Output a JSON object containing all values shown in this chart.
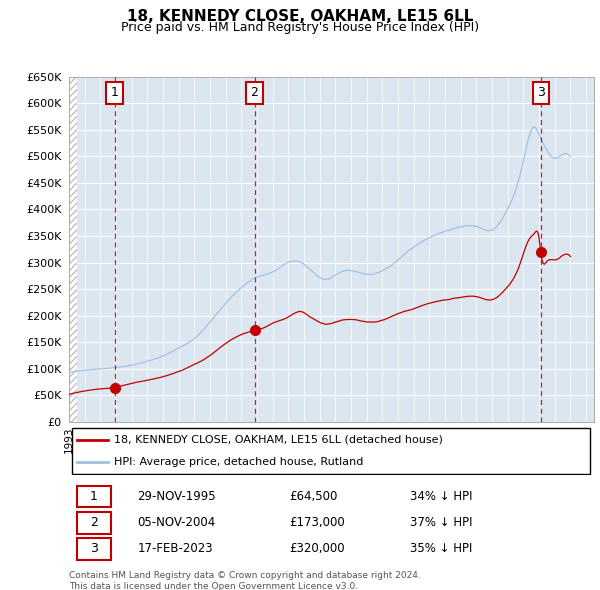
{
  "title": "18, KENNEDY CLOSE, OAKHAM, LE15 6LL",
  "subtitle": "Price paid vs. HM Land Registry's House Price Index (HPI)",
  "hpi_color": "#9dc3e6",
  "sale_color": "#c00000",
  "dashed_line_color": "#c00000",
  "background_color": "#dce6f1",
  "ylim": [
    0,
    650000
  ],
  "xmin": 1993.0,
  "xmax": 2026.5,
  "sales": [
    {
      "num": 1,
      "year": 1995.91,
      "price": 64500
    },
    {
      "num": 2,
      "year": 2004.84,
      "price": 173000
    },
    {
      "num": 3,
      "year": 2023.12,
      "price": 320000
    }
  ],
  "legend_label_sale": "18, KENNEDY CLOSE, OAKHAM, LE15 6LL (detached house)",
  "legend_label_hpi": "HPI: Average price, detached house, Rutland",
  "footnote": "Contains HM Land Registry data © Crown copyright and database right 2024.\nThis data is licensed under the Open Government Licence v3.0.",
  "table_rows": [
    {
      "num": "1",
      "date": "29-NOV-1995",
      "price": "£64,500",
      "hpi": "34% ↓ HPI"
    },
    {
      "num": "2",
      "date": "05-NOV-2004",
      "price": "£173,000",
      "hpi": "37% ↓ HPI"
    },
    {
      "num": "3",
      "date": "17-FEB-2023",
      "price": "£320,000",
      "hpi": "35% ↓ HPI"
    }
  ]
}
